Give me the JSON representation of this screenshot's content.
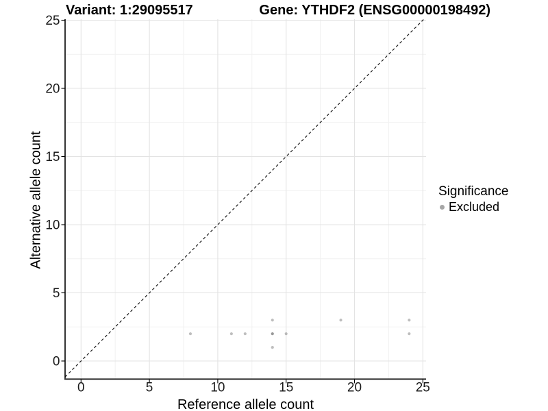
{
  "chart_data": {
    "type": "scatter",
    "title_left": "Variant: 1:29095517",
    "title_right": "Gene: YTHDF2 (ENSG00000198492)",
    "xlabel": "Reference allele count",
    "ylabel": "Alternative allele count",
    "xlim": [
      -1.17,
      25.24
    ],
    "ylim": [
      -1.33,
      25.08
    ],
    "x_ticks": [
      0,
      5,
      10,
      15,
      20,
      25
    ],
    "y_ticks": [
      0,
      5,
      10,
      15,
      20,
      25
    ],
    "minor_ticks": [
      2.5,
      7.5,
      12.5,
      17.5,
      22.5
    ],
    "grid": true,
    "points": [
      {
        "x": 8,
        "y": 2
      },
      {
        "x": 11,
        "y": 2
      },
      {
        "x": 12,
        "y": 2
      },
      {
        "x": 14,
        "y": 1
      },
      {
        "x": 14,
        "y": 2
      },
      {
        "x": 14,
        "y": 2
      },
      {
        "x": 14,
        "y": 3
      },
      {
        "x": 15,
        "y": 2
      },
      {
        "x": 19,
        "y": 3
      },
      {
        "x": 24,
        "y": 2
      },
      {
        "x": 24,
        "y": 3
      }
    ],
    "reference_line": {
      "slope": 1,
      "intercept": 0,
      "style": "dashed"
    },
    "legend": {
      "title": "Significance",
      "position": "right",
      "items": [
        {
          "label": "Excluded",
          "color": "#a6a6a6"
        }
      ]
    },
    "style": {
      "point_color": "#646464",
      "point_opacity": 0.42,
      "legend_point_color": "#a6a6a6",
      "grid_major_color": "#e3e3e3",
      "grid_minor_color": "#f1f1f1",
      "left_axis_color": "#000000",
      "bottom_axis_color": "#3c3c3c",
      "tick_color": "#000000",
      "tick_label_color": "#1a1a1a",
      "reference_line_color": "#1a1a1a"
    }
  }
}
